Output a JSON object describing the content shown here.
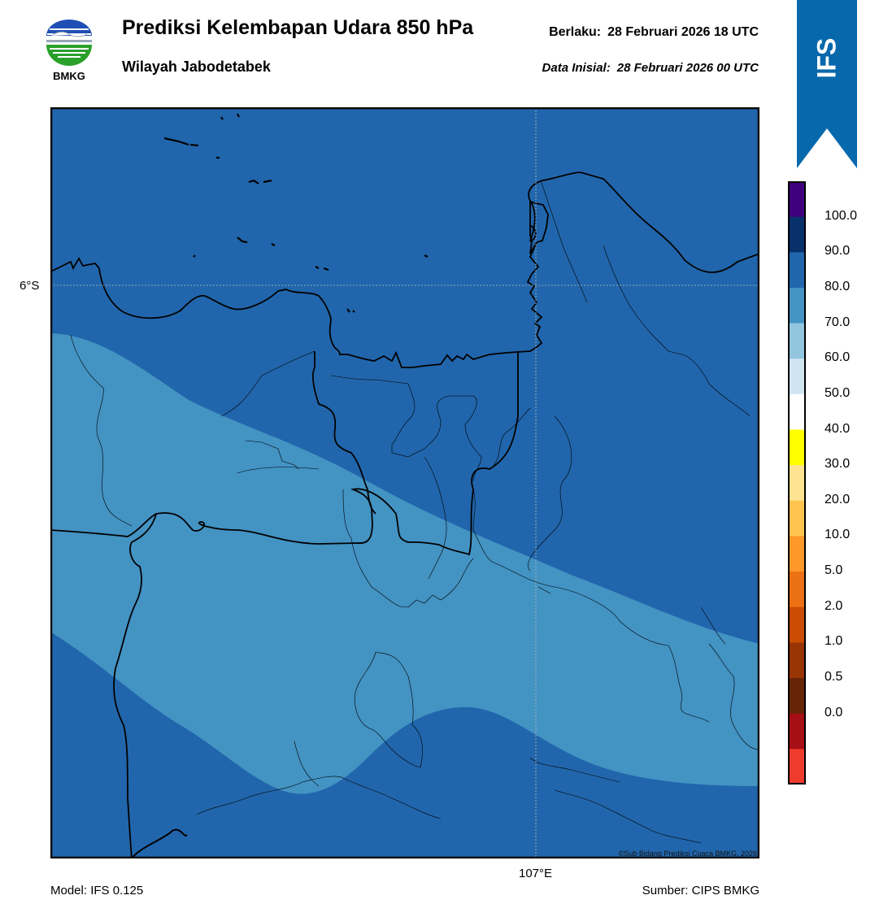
{
  "header": {
    "title": "Prediksi Kelembapan Udara 850 hPa",
    "subtitle": "Wilayah Jabodetabek",
    "valid_label": "Berlaku:",
    "valid_value": "28 Februari 2026 18 UTC",
    "init_label": "Data Inisial:",
    "init_value": "28 Februari 2026 00 UTC"
  },
  "logo": {
    "text": "BMKG",
    "icon": "bmkg-logo"
  },
  "ribbon": {
    "text": "IFS",
    "color": "#0868ac"
  },
  "map": {
    "lat_label": "6°S",
    "lon_label": "107°E",
    "copyright": "©Sub Bidang Prediksi Cuaca BMKG, 2026",
    "colors": {
      "band_80_90": "#2166ac",
      "band_70_80": "#4393c3"
    }
  },
  "colorbar": {
    "labels": [
      "100.0",
      "90.0",
      "80.0",
      "70.0",
      "60.0",
      "50.0",
      "40.0",
      "30.0",
      "20.0",
      "10.0",
      "5.0",
      "2.0",
      "1.0",
      "0.5",
      "0.0"
    ],
    "colors": [
      "#3f007d",
      "#08306b",
      "#2166ac",
      "#4393c3",
      "#92c5de",
      "#d1e5f0",
      "#ffffff",
      "#ffff00",
      "#fee391",
      "#fec44f",
      "#fe9929",
      "#ec7014",
      "#cc4c02",
      "#993404",
      "#662506",
      "#a50f15",
      "#ef3b2c"
    ]
  },
  "footer": {
    "model": "Model: IFS 0.125",
    "source": "Sumber: CIPS BMKG"
  }
}
